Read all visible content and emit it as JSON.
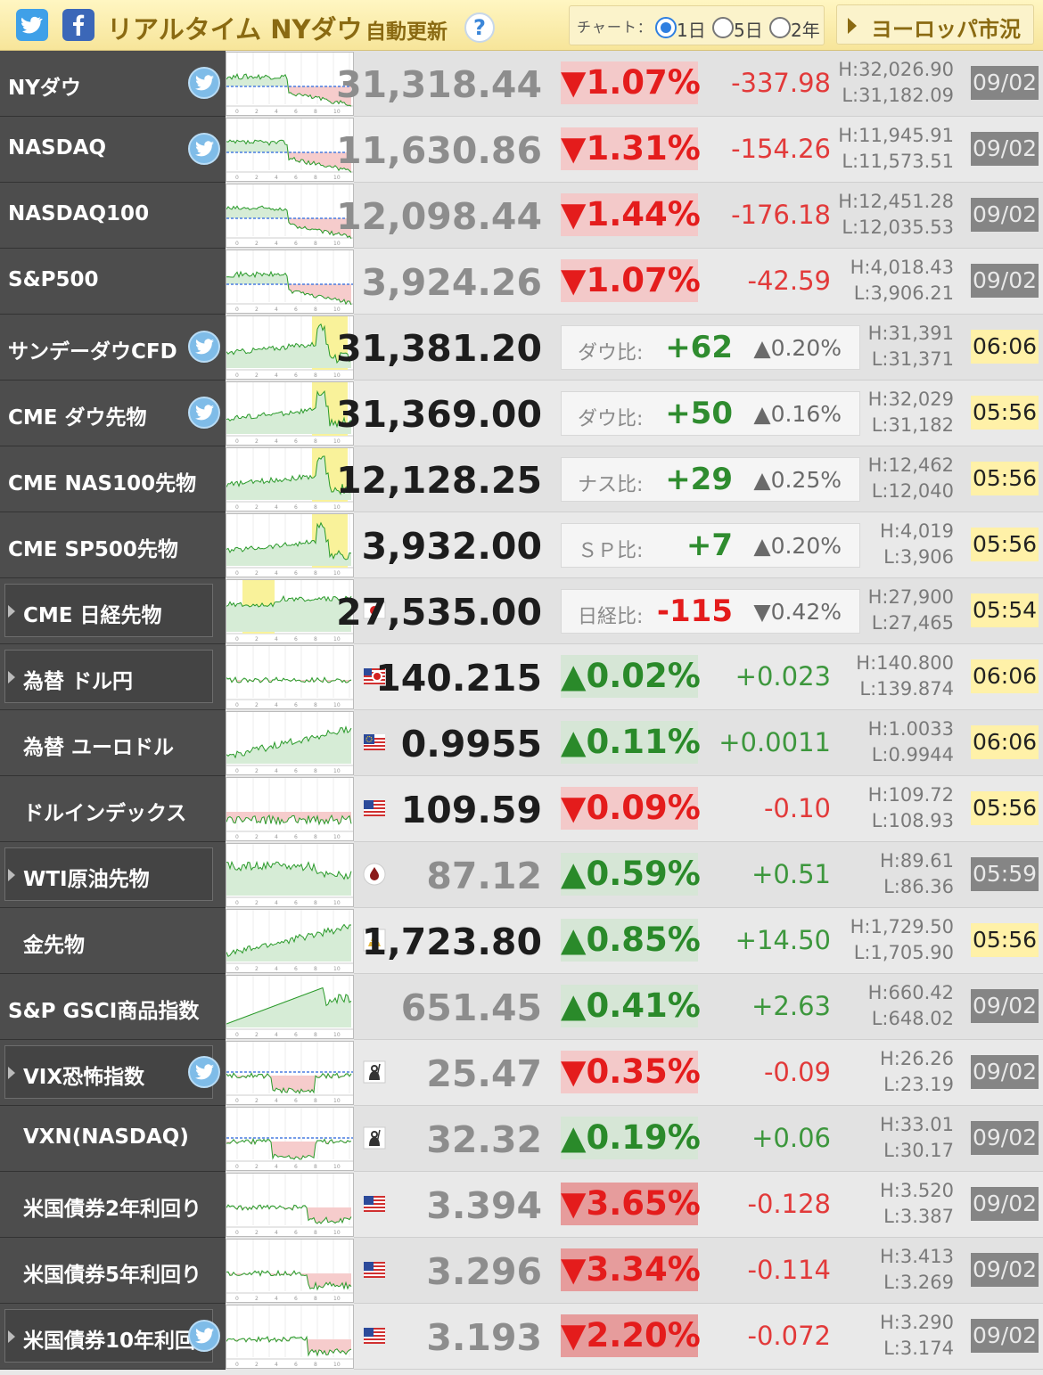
{
  "header": {
    "title": "リアルタイム NYダウ",
    "auto_update": "自動更新",
    "help": "?",
    "chart_label": "チャート：",
    "range_options": [
      "1日",
      "5日",
      "2年"
    ],
    "selected_range": "1日",
    "europe_button": "ヨーロッパ市況"
  },
  "colors": {
    "header_bg": "#f7e59a",
    "up": "#2a8a2a",
    "down": "#e41c1c",
    "name_bg": "#4d4d4d"
  },
  "rows": [
    {
      "name": "NYダウ",
      "tw": true,
      "boxed": false,
      "price": "31,318.44",
      "dim": true,
      "pct": "▼1.07%",
      "dir": "dn",
      "chg": "-337.98",
      "high": "H:32,026.90",
      "low": "L:31,182.09",
      "date": "09/02",
      "date_style": "gray",
      "chart": "dow"
    },
    {
      "name": "NASDAQ",
      "tw": true,
      "boxed": false,
      "price": "11,630.86",
      "dim": true,
      "pct": "▼1.31%",
      "dir": "dn",
      "chg": "-154.26",
      "high": "H:11,945.91",
      "low": "L:11,573.51",
      "date": "09/02",
      "date_style": "gray",
      "chart": "dow"
    },
    {
      "name": "NASDAQ100",
      "tw": false,
      "boxed": false,
      "price": "12,098.44",
      "dim": true,
      "pct": "▼1.44%",
      "dir": "dn",
      "chg": "-176.18",
      "high": "H:12,451.28",
      "low": "L:12,035.53",
      "date": "09/02",
      "date_style": "gray",
      "chart": "dow"
    },
    {
      "name": "S&P500",
      "tw": false,
      "boxed": false,
      "price": "3,924.26",
      "dim": true,
      "pct": "▼1.07%",
      "dir": "dn",
      "chg": "-42.59",
      "high": "H:4,018.43",
      "low": "L:3,906.21",
      "date": "09/02",
      "date_style": "gray",
      "chart": "dow"
    },
    {
      "name": "サンデーダウCFD",
      "tw": true,
      "boxed": false,
      "price": "31,381.20",
      "dim": false,
      "cmp": {
        "label": "ダウ比:",
        "value": "+62",
        "vdir": "g",
        "pct": "▲0.20%"
      },
      "high": "H:31,391",
      "low": "L:31,371",
      "date": "06:06",
      "date_style": "yel",
      "chart": "fut"
    },
    {
      "name": "CME ダウ先物",
      "tw": true,
      "boxed": false,
      "price": "31,369.00",
      "dim": false,
      "cmp": {
        "label": "ダウ比:",
        "value": "+50",
        "vdir": "g",
        "pct": "▲0.16%"
      },
      "high": "H:32,029",
      "low": "L:31,182",
      "date": "05:56",
      "date_style": "yel",
      "chart": "fut"
    },
    {
      "name": "CME NAS100先物",
      "tw": false,
      "boxed": false,
      "price": "12,128.25",
      "dim": false,
      "cmp": {
        "label": "ナス比:",
        "value": "+29",
        "vdir": "g",
        "pct": "▲0.25%"
      },
      "high": "H:12,462",
      "low": "L:12,040",
      "date": "05:56",
      "date_style": "yel",
      "chart": "fut"
    },
    {
      "name": "CME SP500先物",
      "tw": false,
      "boxed": false,
      "price": "3,932.00",
      "dim": false,
      "cmp": {
        "label": "ＳＰ比:",
        "value": "+7",
        "vdir": "g",
        "pct": "▲0.20%"
      },
      "high": "H:4,019",
      "low": "L:3,906",
      "date": "05:56",
      "date_style": "yel",
      "chart": "fut"
    },
    {
      "name": "CME 日経先物",
      "tw": false,
      "boxed": true,
      "flag": "jp",
      "price": "27,535.00",
      "dim": false,
      "cmp": {
        "label": "日経比:",
        "value": "-115",
        "vdir": "r",
        "pct": "▼0.42%"
      },
      "high": "H:27,900",
      "low": "L:27,465",
      "date": "05:54",
      "date_style": "yel",
      "chart": "nk"
    },
    {
      "name": "為替 ドル円",
      "tw": false,
      "boxed": true,
      "flag": "usjp",
      "price": "140.215",
      "dim": false,
      "pct": "▲0.02%",
      "dir": "up",
      "chg": "+0.023",
      "high": "H:140.800",
      "low": "L:139.874",
      "date": "06:06",
      "date_style": "yel",
      "chart": "fx"
    },
    {
      "name": "為替 ユーロドル",
      "tw": false,
      "boxed": false,
      "flag": "eu",
      "price": "0.9955",
      "dim": false,
      "pct": "▲0.11%",
      "dir": "up",
      "chg": "+0.0011",
      "high": "H:1.0033",
      "low": "L:0.9944",
      "date": "06:06",
      "date_style": "yel",
      "chart": "upg"
    },
    {
      "name": "ドルインデックス",
      "tw": false,
      "boxed": false,
      "flag": "us",
      "price": "109.59",
      "dim": false,
      "pct": "▼0.09%",
      "dir": "dn",
      "chg": "-0.10",
      "high": "H:109.72",
      "low": "L:108.93",
      "date": "05:56",
      "date_style": "yel",
      "chart": "dnr"
    },
    {
      "name": "WTI原油先物",
      "tw": false,
      "boxed": true,
      "flag": "oil",
      "price": "87.12",
      "dim": true,
      "pct": "▲0.59%",
      "dir": "up",
      "chg": "+0.51",
      "high": "H:89.61",
      "low": "L:86.36",
      "date": "05:59",
      "date_style": "gray",
      "chart": "wti"
    },
    {
      "name": "金先物",
      "tw": false,
      "boxed": false,
      "flag": "gold",
      "price": "1,723.80",
      "dim": false,
      "pct": "▲0.85%",
      "dir": "up",
      "chg": "+14.50",
      "high": "H:1,729.50",
      "low": "L:1,705.90",
      "date": "05:56",
      "date_style": "yel",
      "chart": "upg"
    },
    {
      "name": "S&P GSCI商品指数",
      "tw": false,
      "boxed": false,
      "price": "651.45",
      "dim": true,
      "pct": "▲0.41%",
      "dir": "up",
      "chg": "+2.63",
      "high": "H:660.42",
      "low": "L:648.02",
      "date": "09/02",
      "date_style": "gray",
      "chart": "gsci"
    },
    {
      "name": "VIX恐怖指数",
      "tw": true,
      "boxed": true,
      "flag": "vix",
      "price": "25.47",
      "dim": true,
      "pct": "▼0.35%",
      "dir": "dn",
      "chg": "-0.09",
      "high": "H:26.26",
      "low": "L:23.19",
      "date": "09/02",
      "date_style": "gray",
      "chart": "vix"
    },
    {
      "name": "VXN(NASDAQ)",
      "tw": false,
      "boxed": false,
      "flag": "vix",
      "price": "32.32",
      "dim": true,
      "pct": "▲0.19%",
      "dir": "up",
      "chg": "+0.06",
      "high": "H:33.01",
      "low": "L:30.17",
      "date": "09/02",
      "date_style": "gray",
      "chart": "vix"
    },
    {
      "name": "米国債券2年利回り",
      "tw": false,
      "boxed": false,
      "flag": "us",
      "price": "3.394",
      "dim": true,
      "pct": "▼3.65%",
      "dir": "dn2",
      "chg": "-0.128",
      "high": "H:3.520",
      "low": "L:3.387",
      "date": "09/02",
      "date_style": "gray",
      "chart": "bond"
    },
    {
      "name": "米国債券5年利回り",
      "tw": false,
      "boxed": false,
      "flag": "us",
      "price": "3.296",
      "dim": true,
      "pct": "▼3.34%",
      "dir": "dn2",
      "chg": "-0.114",
      "high": "H:3.413",
      "low": "L:3.269",
      "date": "09/02",
      "date_style": "gray",
      "chart": "bond"
    },
    {
      "name": "米国債券10年利回り",
      "tw": true,
      "boxed": true,
      "flag": "us",
      "price": "3.193",
      "dim": true,
      "pct": "▼2.20%",
      "dir": "dn2",
      "chg": "-0.072",
      "high": "H:3.290",
      "low": "L:3.174",
      "date": "09/02",
      "date_style": "gray",
      "chart": "bond"
    }
  ]
}
